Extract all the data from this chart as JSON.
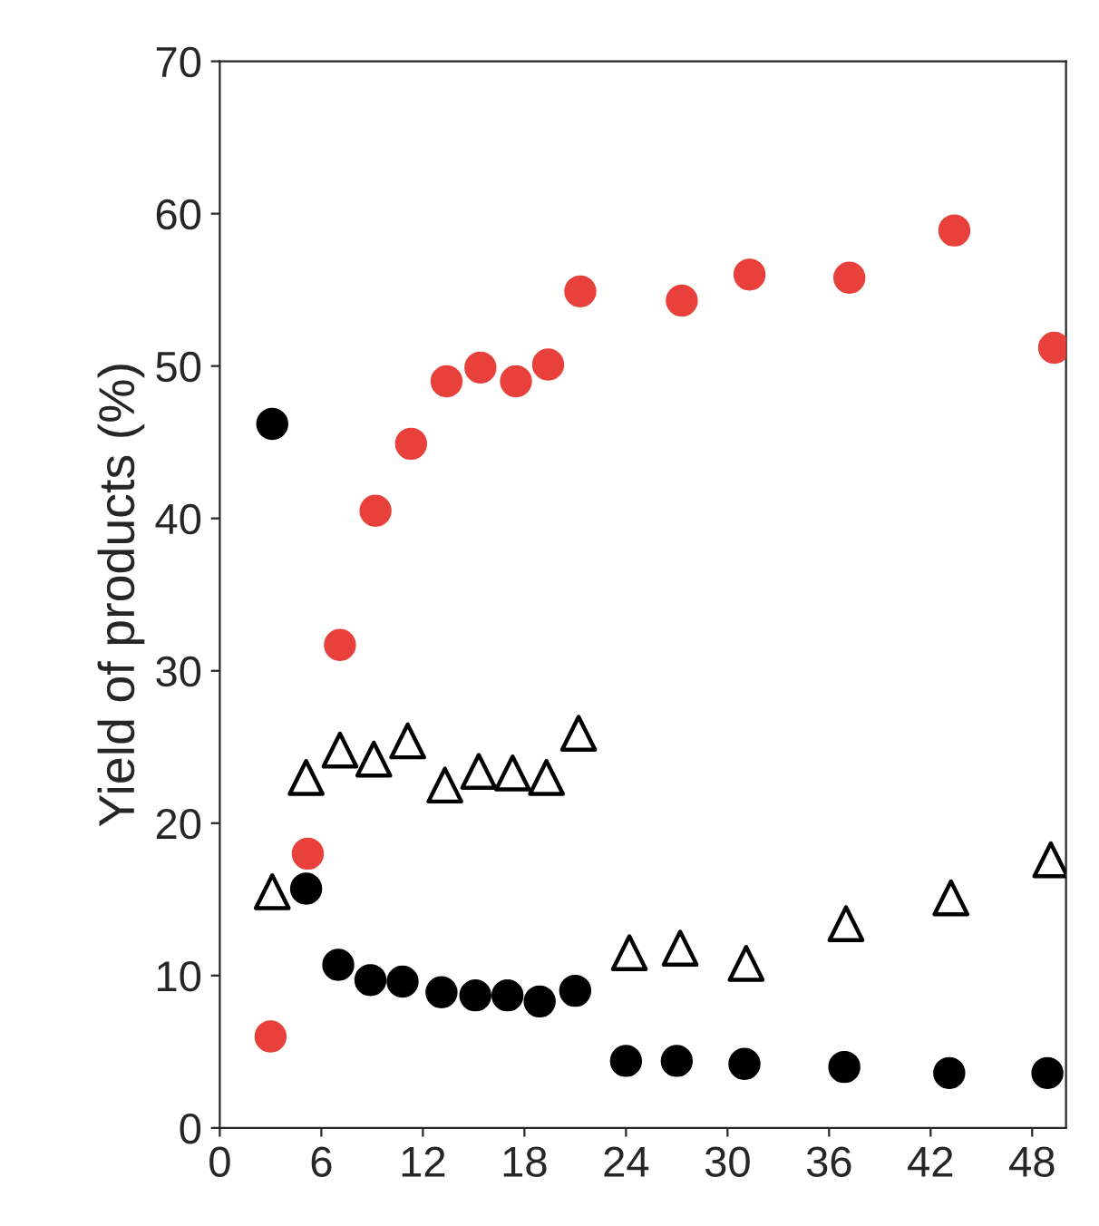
{
  "chart_data": {
    "type": "scatter",
    "ylabel": "Yield of products (%)",
    "xlim": [
      0,
      50
    ],
    "xticks": [
      0,
      6,
      12,
      18,
      24,
      30,
      36,
      42,
      48
    ],
    "ylim": [
      0,
      70
    ],
    "yticks": [
      0,
      10,
      20,
      30,
      40,
      50,
      60,
      70
    ],
    "grid": false,
    "legend": false,
    "series": [
      {
        "color": "#e8413c",
        "marker": "circle",
        "x": [
          3.0,
          5.2,
          7.1,
          9.2,
          11.3,
          13.4,
          15.4,
          17.5,
          19.4,
          21.3,
          27.3,
          31.3,
          37.2,
          43.4,
          49.3
        ],
        "values": [
          6.0,
          18.0,
          31.7,
          40.5,
          44.9,
          49.0,
          49.9,
          49.0,
          50.1,
          54.9,
          54.3,
          56.0,
          55.8,
          58.9,
          51.2
        ]
      },
      {
        "color": "#000000",
        "marker": "circle",
        "x": [
          3.1,
          5.1,
          7.0,
          8.9,
          10.8,
          13.1,
          15.1,
          17.0,
          18.9,
          21.0,
          24.0,
          27.0,
          31.0,
          36.9,
          43.1,
          48.9
        ],
        "values": [
          46.2,
          15.7,
          10.7,
          9.7,
          9.6,
          8.9,
          8.7,
          8.7,
          8.3,
          9.0,
          4.4,
          4.4,
          4.2,
          4.0,
          3.6,
          3.6
        ]
      },
      {
        "color": "#000000",
        "marker": "triangle",
        "x": [
          3.1,
          5.1,
          7.1,
          9.1,
          11.1,
          13.3,
          15.3,
          17.3,
          19.3,
          21.2,
          24.2,
          27.2,
          31.1,
          37.0,
          43.2,
          49.1
        ],
        "values": [
          15.5,
          23.0,
          24.8,
          24.2,
          25.4,
          22.5,
          23.4,
          23.3,
          23.0,
          25.9,
          11.5,
          11.8,
          10.8,
          13.4,
          15.1,
          17.6
        ]
      }
    ]
  }
}
